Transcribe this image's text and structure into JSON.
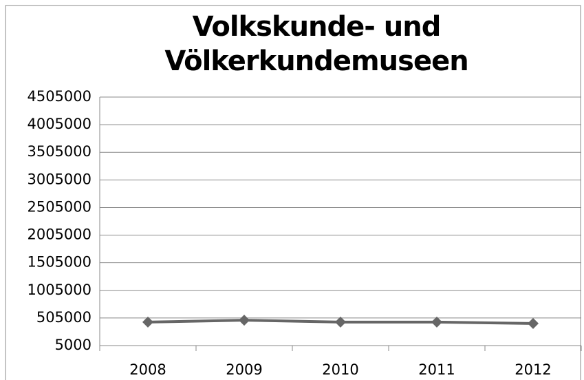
{
  "chart_data": {
    "type": "line",
    "title": "Volkskunde- und Völkerkundemuseen",
    "categories": [
      "2008",
      "2009",
      "2010",
      "2011",
      "2012"
    ],
    "series": [
      {
        "name": "Volkskunde- und Völkerkundemuseen",
        "color": "#666666",
        "values": [
          430000,
          465000,
          430000,
          430000,
          405000
        ]
      }
    ],
    "ylim": [
      5000,
      4505000
    ],
    "yticks": [
      5000,
      505000,
      1005000,
      1505000,
      2005000,
      2505000,
      3005000,
      3505000,
      4005000,
      4505000
    ],
    "grid": true
  }
}
